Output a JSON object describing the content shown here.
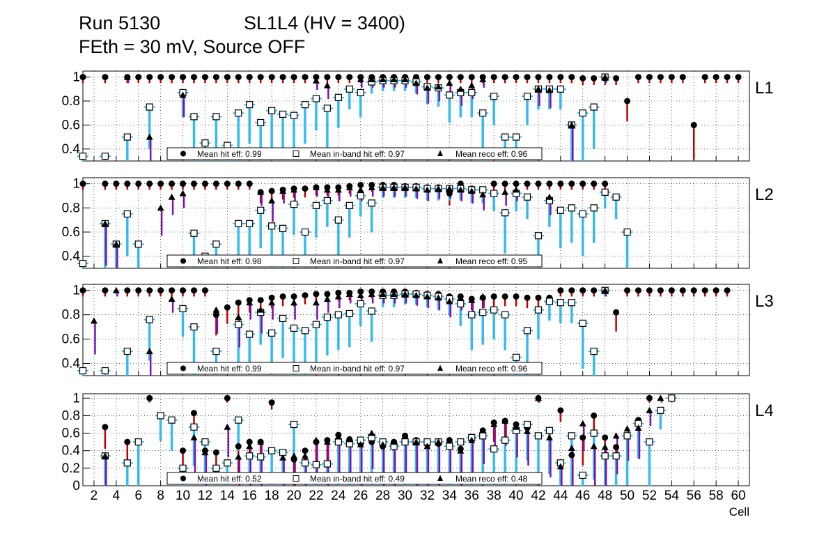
{
  "header": {
    "run": "Run 5130",
    "chamber": "SL1L4 (HV = 3400)",
    "conditions": "FEth = 30 mV, Source OFF"
  },
  "colors": {
    "hit_error": "#c00000",
    "inband_error": "#33bbee",
    "reco_error": "#7a10b0",
    "frame": "#000000",
    "grid": "#000000"
  },
  "chart_data": {
    "type": "scatter",
    "xlabel": "Cell",
    "x_ticks": [
      "2",
      "4",
      "6",
      "8",
      "10",
      "12",
      "14",
      "16",
      "18",
      "20",
      "22",
      "24",
      "26",
      "28",
      "30",
      "32",
      "34",
      "36",
      "38",
      "40",
      "42",
      "44",
      "46",
      "48",
      "50",
      "52",
      "54",
      "56",
      "58",
      "60"
    ],
    "xlim": [
      1,
      61
    ],
    "legend_labels": {
      "hit": "Mean hit  eff:",
      "inband": "Mean in-band hit eff:",
      "reco": "Mean reco eff:"
    },
    "panels": [
      {
        "name": "L1",
        "ylim": [
          0.3,
          1.05
        ],
        "y_ticks": [
          "0.4",
          "0.6",
          "0.8",
          "1"
        ],
        "mean_hit": "0.99",
        "mean_inband": "0.97",
        "mean_reco": "0.96",
        "hit": [
          1,
          null,
          1,
          null,
          1,
          1,
          1,
          1,
          1,
          1,
          1,
          1,
          1,
          1,
          1,
          1,
          1,
          1,
          1,
          1,
          1,
          1,
          1,
          1,
          1,
          1,
          1,
          1,
          1,
          1,
          1,
          1,
          1,
          1,
          1,
          1,
          1,
          1,
          1,
          1,
          1,
          1,
          1,
          1,
          1,
          0.99,
          0.99,
          0.99,
          0.99,
          0.8,
          1,
          1,
          1,
          1,
          1,
          0.6,
          1,
          1,
          1,
          1
        ],
        "inband": [
          0.34,
          null,
          0.34,
          null,
          0.5,
          null,
          0.75,
          null,
          null,
          0.87,
          0.67,
          0.45,
          0.67,
          0.43,
          0.7,
          0.77,
          0.62,
          0.72,
          0.69,
          0.68,
          0.77,
          0.82,
          0.74,
          0.83,
          0.9,
          0.87,
          0.96,
          0.97,
          0.97,
          0.97,
          0.96,
          0.92,
          0.91,
          0.85,
          0.87,
          0.87,
          0.7,
          0.84,
          0.5,
          0.5,
          0.84,
          0.9,
          0.9,
          0.9,
          0.6,
          0.7,
          0.75,
          1,
          null,
          null,
          null,
          null,
          null,
          null,
          null,
          null,
          null,
          null,
          null,
          null
        ],
        "reco": [
          null,
          null,
          null,
          null,
          1,
          null,
          0.5,
          null,
          null,
          0.85,
          null,
          null,
          null,
          null,
          null,
          null,
          null,
          null,
          null,
          null,
          null,
          0.97,
          0.93,
          null,
          null,
          0.98,
          0.98,
          0.98,
          0.98,
          0.98,
          0.95,
          0.91,
          0.92,
          0.95,
          0.9,
          0.93,
          0.98,
          null,
          null,
          null,
          null,
          0.9,
          0.89,
          null,
          0.6,
          null,
          null,
          1,
          null,
          null,
          null,
          null,
          null,
          null,
          null,
          null,
          null,
          null,
          null,
          null
        ]
      },
      {
        "name": "L2",
        "ylim": [
          0.3,
          1.05
        ],
        "y_ticks": [
          "0.4",
          "0.6",
          "0.8",
          "1"
        ],
        "mean_hit": "0.98",
        "mean_inband": "0.97",
        "mean_reco": "0.95",
        "hit": [
          1,
          null,
          1,
          1,
          1,
          1,
          1,
          1,
          1,
          1,
          1,
          1,
          1,
          1,
          1,
          1,
          0.93,
          0.94,
          0.95,
          0.96,
          0.96,
          0.97,
          0.97,
          0.97,
          0.98,
          0.99,
          0.99,
          0.99,
          0.99,
          0.98,
          0.98,
          0.97,
          0.97,
          0.92,
          1,
          0.96,
          0.95,
          1,
          1,
          1,
          1,
          1,
          1,
          1,
          1,
          1,
          1,
          1,
          null,
          null,
          null,
          null,
          null,
          null,
          null,
          null,
          null,
          null,
          null,
          null
        ],
        "inband": [
          0.34,
          null,
          0.67,
          0.5,
          0.75,
          0.5,
          null,
          null,
          null,
          null,
          0.59,
          0.4,
          0.5,
          null,
          0.67,
          0.67,
          0.78,
          0.65,
          0.63,
          0.83,
          0.6,
          0.82,
          0.86,
          0.7,
          0.82,
          0.9,
          0.84,
          0.97,
          0.97,
          0.97,
          0.97,
          0.96,
          0.96,
          0.96,
          0.96,
          0.95,
          0.95,
          0.92,
          0.76,
          0.92,
          0.89,
          0.57,
          0.86,
          0.78,
          0.8,
          0.75,
          0.8,
          0.93,
          0.89,
          0.6,
          null,
          null,
          null,
          null,
          null,
          null,
          null,
          null,
          null,
          null
        ],
        "reco": [
          null,
          null,
          0.67,
          0.5,
          null,
          null,
          null,
          0.8,
          0.89,
          0.92,
          null,
          null,
          null,
          null,
          null,
          null,
          0.93,
          0.86,
          0.94,
          0.95,
          null,
          0.97,
          0.95,
          0.95,
          0.97,
          0.95,
          0.97,
          0.97,
          0.97,
          0.97,
          0.96,
          0.95,
          0.96,
          0.96,
          0.95,
          0.94,
          0.91,
          null,
          0.93,
          0.95,
          null,
          null,
          0.89,
          null,
          null,
          null,
          null,
          null,
          null,
          null,
          null,
          null,
          null,
          null,
          null,
          null,
          null,
          null,
          null,
          null
        ]
      },
      {
        "name": "L3",
        "ylim": [
          0.3,
          1.05
        ],
        "y_ticks": [
          "0.4",
          "0.6",
          "0.8",
          "1"
        ],
        "mean_hit": "0.99",
        "mean_inband": "0.97",
        "mean_reco": "0.96",
        "hit": [
          1,
          null,
          1,
          null,
          1,
          1,
          1,
          1,
          1,
          1,
          1,
          1,
          0.8,
          0.86,
          0.9,
          0.92,
          0.92,
          0.94,
          0.95,
          0.95,
          0.96,
          0.97,
          0.97,
          0.98,
          0.98,
          0.99,
          0.99,
          0.99,
          0.99,
          0.99,
          0.98,
          0.97,
          0.97,
          0.95,
          0.95,
          0.93,
          0.94,
          0.95,
          0.95,
          0.95,
          0.94,
          0.94,
          0.94,
          1,
          1,
          1,
          1,
          1,
          0.82,
          1,
          1,
          1,
          1,
          1,
          1,
          1,
          1,
          1,
          1,
          null
        ],
        "inband": [
          0.34,
          null,
          0.34,
          null,
          0.5,
          null,
          0.76,
          null,
          null,
          0.85,
          0.7,
          null,
          0.5,
          null,
          0.72,
          0.64,
          0.82,
          0.65,
          0.77,
          0.69,
          0.67,
          0.72,
          0.78,
          0.8,
          0.81,
          0.89,
          0.83,
          0.96,
          0.96,
          0.97,
          0.97,
          0.96,
          0.95,
          0.93,
          0.89,
          0.8,
          0.82,
          0.84,
          0.8,
          0.45,
          0.67,
          0.84,
          0.91,
          0.9,
          0.9,
          0.73,
          0.5,
          1,
          null,
          null,
          null,
          null,
          null,
          null,
          null,
          null,
          null,
          null,
          null,
          null
        ],
        "reco": [
          null,
          0.75,
          null,
          1,
          null,
          null,
          0.5,
          null,
          0.93,
          null,
          null,
          null,
          0.84,
          null,
          0.78,
          0.9,
          0.84,
          0.9,
          null,
          0.9,
          null,
          0.9,
          0.93,
          0.95,
          0.97,
          0.96,
          0.97,
          0.97,
          0.97,
          0.97,
          0.96,
          0.95,
          0.94,
          0.91,
          0.94,
          0.92,
          0.95,
          null,
          null,
          null,
          null,
          null,
          null,
          null,
          null,
          null,
          null,
          1,
          null,
          null,
          null,
          null,
          null,
          null,
          null,
          null,
          null,
          null,
          null,
          null
        ]
      },
      {
        "name": "L4",
        "ylim": [
          0,
          1.05
        ],
        "y_ticks": [
          "0",
          "0.2",
          "0.4",
          "0.6",
          "0.8",
          "1"
        ],
        "mean_hit": "0.52",
        "mean_inband": "0.49",
        "mean_reco": "0.48",
        "hit": [
          null,
          null,
          0.67,
          null,
          0.5,
          0.5,
          1,
          0.8,
          0.75,
          0.4,
          0.83,
          0.4,
          0.38,
          1,
          0.45,
          0.5,
          0.5,
          0.95,
          0.38,
          0.3,
          0.4,
          0.5,
          0.52,
          0.58,
          0.53,
          0.48,
          0.5,
          0.45,
          0.5,
          0.57,
          0.52,
          0.47,
          0.48,
          0.52,
          0.42,
          0.55,
          0.63,
          0.72,
          0.74,
          0.7,
          0.66,
          1,
          0.62,
          0.86,
          0.35,
          0.55,
          0.8,
          0.55,
          0.44,
          0.57,
          0.75,
          1,
          0.86,
          1,
          null,
          null,
          null,
          null,
          null,
          null
        ],
        "inband": [
          null,
          null,
          0.34,
          null,
          0.26,
          0.5,
          null,
          0.8,
          0.75,
          0.2,
          0.67,
          0.5,
          0.2,
          0.26,
          0.75,
          0.34,
          0.33,
          0.4,
          0.38,
          0.7,
          0.26,
          0.24,
          0.25,
          0.5,
          0.48,
          0.52,
          0.55,
          0.5,
          0.45,
          0.5,
          0.5,
          0.5,
          0.5,
          0.45,
          0.5,
          0.55,
          0.57,
          0.42,
          0.52,
          0.63,
          0.7,
          0.57,
          0.63,
          0.26,
          0.57,
          0.12,
          0.6,
          0.34,
          0.34,
          0.57,
          0.71,
          0.5,
          0.86,
          1,
          null,
          null,
          null,
          null,
          null,
          null
        ],
        "reco": [
          null,
          null,
          0.34,
          null,
          null,
          null,
          null,
          null,
          null,
          null,
          0.55,
          0.38,
          null,
          0.67,
          0.33,
          0.45,
          0.5,
          null,
          0.32,
          0.34,
          0.34,
          0.52,
          0.5,
          0.56,
          0.53,
          0.47,
          0.6,
          0.47,
          0.5,
          0.57,
          0.5,
          0.45,
          0.5,
          0.52,
          0.4,
          0.52,
          0.63,
          0.7,
          0.74,
          0.67,
          0.62,
          1,
          0.55,
          0.22,
          0.43,
          0.71,
          0.45,
          0.44,
          0.57,
          0.65,
          0.66,
          0.86,
          1,
          null,
          null,
          null,
          null,
          null,
          null,
          null
        ]
      }
    ]
  }
}
